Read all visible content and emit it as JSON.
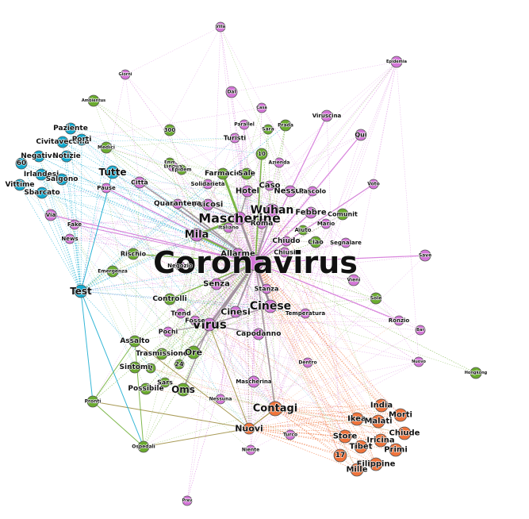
{
  "colors": {
    "purple": "#d475d8",
    "green": "#6aab2e",
    "blue": "#10a9cf",
    "orange": "#f0733a",
    "edge_gray": "#9a8a96",
    "edge_olive": "#9a8a3a"
  },
  "clusters": {
    "purple": [
      "Villa",
      "Giorni",
      "Dal",
      "Casa",
      "Viruscina",
      "Qui",
      "Epidemia",
      "Parallel",
      "Turisti",
      "Azienda",
      "Hotel",
      "Caso",
      "Nessun",
      "Pascolo",
      "Wuhan",
      "Febbre",
      "Mario",
      "Voto",
      "Mascherine",
      "Mila",
      "Coronavirus",
      "Cinese",
      "Italiano",
      "Allarme",
      "Chiudo",
      "Segnalare",
      "Save",
      "Vieni",
      "Senza",
      "Stanza",
      "Temperatura",
      "Ronzio",
      "Bar",
      "Nuovo",
      "Virus",
      "Cinesi",
      "Capodanno",
      "Pochi",
      "Trend",
      "Fosse",
      "Mascherina",
      "Nessuna",
      "Dentro",
      "Niente",
      "Turco",
      "Fake",
      "News",
      "Via",
      "Psicosi",
      "Quarantena",
      "Citta",
      "Pause",
      "Solidarieta",
      "Negozio",
      "Roma",
      "Chiusi",
      "Lingua",
      "Prev"
    ],
    "green": [
      "Ambientus",
      "300",
      "Medici",
      "10",
      "Prada",
      "Sara",
      "Farmacie",
      "Sale",
      "Comunit",
      "Emergenza",
      "Rischio",
      "Controlli",
      "Assalto",
      "Trasmissione",
      "Ore",
      "Sintomi",
      "2",
      "24",
      "Possibile",
      "Sars",
      "Oms",
      "Pronti",
      "Ospedali",
      "Epidemia2",
      "Emm",
      "Hongkong",
      "Sole",
      "Ciao",
      "Aiuto"
    ],
    "blue": [
      "Paziente",
      "Civitavecchia",
      "Porti",
      "Negativo",
      "Notizie",
      "60",
      "Irlandesi",
      "Salgono",
      "Vittime",
      "Sbarcato",
      "Tutte",
      "Test"
    ],
    "orange": [
      "India",
      "Ikea",
      "Morti",
      "Malati",
      "Chiude",
      "Store",
      "Tibet",
      "Iricina",
      "Primi",
      "Filippine",
      "Mille",
      "Contagi",
      "Nuovi",
      "17"
    ]
  },
  "labels": {
    "coronavirus": "Coronavirus",
    "mascherine": "Mascherine",
    "virus": "Virus",
    "cinese": "Cinese",
    "wuhan": "Wuhan",
    "contagi": "Contagi",
    "nuovi": "Nuovi",
    "test": "Test",
    "tutte": "Tutte",
    "mila": "Mila",
    "oms": "Oms"
  }
}
